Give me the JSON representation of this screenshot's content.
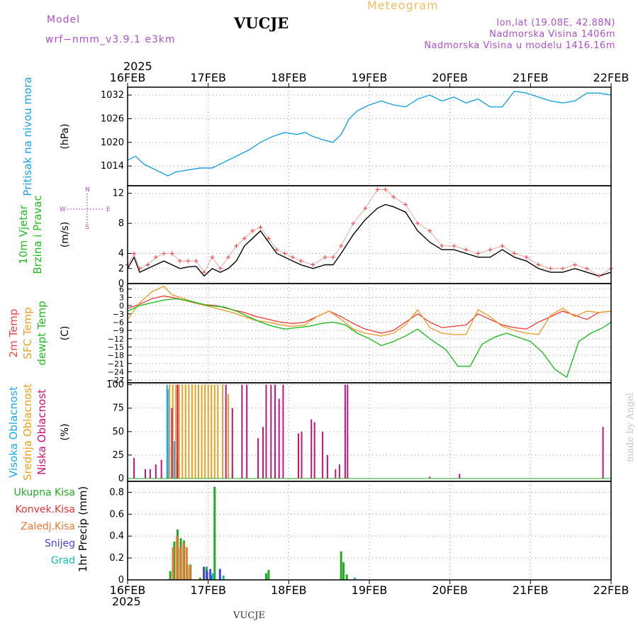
{
  "header": {
    "model_label": "Model",
    "model_value": "wrf−nmm_v3.9.1  e3km",
    "station": "VUCJE",
    "product": "Meteogram",
    "location": "lon,lat (19.08E, 42.88N)",
    "elevation": "Nadmorska Visina 1406m",
    "model_elevation": "Nadmorska Visina u modelu 1416.16m"
  },
  "footer": {
    "station": "VUCJE",
    "credit": "made by Angel"
  },
  "colors": {
    "pressure": "#1ea0e0",
    "temp2m": "#ee4444",
    "sfc": "#e8a030",
    "dew": "#22bb22",
    "high_cloud": "#1eaaee",
    "mid_cloud": "#e8a020",
    "low_cloud": "#cc1177",
    "total_precip": "#22aa22",
    "conv_precip": "#ee3333",
    "frozen_precip": "#ee7733",
    "snow": "#4444dd",
    "graupel": "#11bbbb",
    "wind_speed": "#000000",
    "gust_marker": "#ee4444"
  },
  "chart_data": {
    "type": "meteogram",
    "time_axis": {
      "year": "2025",
      "start_day": 16,
      "end_day": 22,
      "labels": [
        "16FEB",
        "17FEB",
        "18FEB",
        "19FEB",
        "20FEB",
        "21FEB",
        "22FEB"
      ]
    },
    "panels": [
      {
        "id": "pressure",
        "type": "line",
        "ylabel_lines": [
          "Pritisak na nivou mora"
        ],
        "unit": "(hPa)",
        "ylim": [
          1009,
          1034
        ],
        "ticks": [
          "1014",
          "1020",
          "1026",
          "1032"
        ],
        "tick_values": [
          1014,
          1020,
          1026,
          1032
        ],
        "series": [
          {
            "name": "MSL pressure",
            "t": [
              16.0,
              16.1,
              16.2,
              16.35,
              16.5,
              16.6,
              16.75,
              16.9,
              17.05,
              17.2,
              17.35,
              17.5,
              17.65,
              17.8,
              17.95,
              18.1,
              18.2,
              18.3,
              18.45,
              18.55,
              18.65,
              18.75,
              18.85,
              19.0,
              19.15,
              19.3,
              19.45,
              19.6,
              19.75,
              19.9,
              20.05,
              20.2,
              20.35,
              20.5,
              20.65,
              20.8,
              20.95,
              21.1,
              21.25,
              21.4,
              21.55,
              21.7,
              21.85,
              22.0
            ],
            "values": [
              1015.5,
              1016.5,
              1014.5,
              1013.0,
              1011.5,
              1012.5,
              1013.0,
              1013.5,
              1013.5,
              1015.0,
              1016.5,
              1018.0,
              1020.0,
              1021.5,
              1022.5,
              1022.0,
              1022.5,
              1021.5,
              1020.5,
              1020.0,
              1022.0,
              1026.0,
              1028.0,
              1029.5,
              1030.5,
              1029.5,
              1029.0,
              1031.0,
              1032.0,
              1030.5,
              1031.5,
              1030.0,
              1031.0,
              1029.0,
              1029.0,
              1033.0,
              1032.5,
              1031.5,
              1030.5,
              1030.0,
              1030.5,
              1032.5,
              1032.5,
              1032.0
            ]
          }
        ]
      },
      {
        "id": "wind",
        "type": "line",
        "ylabel_lines": [
          "10m Vjetar",
          "Brzina i Pravac"
        ],
        "unit": "(m/s)",
        "ylim": [
          0,
          13
        ],
        "ticks": [
          "0",
          "2",
          "4",
          "8",
          "12"
        ],
        "tick_values": [
          0,
          2,
          4,
          8,
          12
        ],
        "compass": [
          "N",
          "W",
          "E",
          "S"
        ],
        "series": [
          {
            "name": "10m wind speed",
            "t": [
              16.0,
              16.08,
              16.15,
              16.25,
              16.35,
              16.45,
              16.55,
              16.65,
              16.75,
              16.85,
              16.95,
              17.05,
              17.15,
              17.25,
              17.35,
              17.45,
              17.55,
              17.65,
              17.75,
              17.85,
              17.95,
              18.05,
              18.15,
              18.3,
              18.45,
              18.55,
              18.65,
              18.8,
              18.95,
              19.1,
              19.2,
              19.3,
              19.45,
              19.6,
              19.75,
              19.9,
              20.05,
              20.2,
              20.35,
              20.5,
              20.65,
              20.8,
              20.95,
              21.1,
              21.25,
              21.4,
              21.55,
              21.7,
              21.85,
              22.0
            ],
            "values": [
              2.0,
              3.5,
              1.5,
              2.0,
              2.5,
              3.0,
              2.5,
              2.0,
              2.2,
              2.3,
              1.0,
              2.0,
              1.5,
              2.0,
              3.0,
              5.0,
              6.0,
              7.0,
              5.5,
              4.0,
              3.5,
              3.0,
              2.5,
              2.0,
              2.5,
              2.5,
              4.0,
              6.5,
              8.5,
              10.0,
              10.5,
              10.2,
              9.5,
              7.0,
              5.5,
              4.5,
              4.5,
              4.0,
              3.5,
              3.5,
              4.5,
              3.5,
              3.0,
              2.0,
              1.5,
              1.5,
              2.0,
              1.5,
              1.0,
              1.5
            ]
          },
          {
            "name": "10m wind gust",
            "t": [
              16.0,
              16.08,
              16.15,
              16.25,
              16.35,
              16.45,
              16.55,
              16.65,
              16.75,
              16.85,
              16.95,
              17.05,
              17.15,
              17.25,
              17.35,
              17.45,
              17.55,
              17.65,
              17.75,
              17.85,
              17.95,
              18.05,
              18.15,
              18.3,
              18.45,
              18.55,
              18.65,
              18.8,
              18.95,
              19.1,
              19.2,
              19.3,
              19.45,
              19.6,
              19.75,
              19.9,
              20.05,
              20.2,
              20.35,
              20.5,
              20.65,
              20.8,
              20.95,
              21.1,
              21.25,
              21.4,
              21.55,
              21.7,
              21.85,
              22.0
            ],
            "values": [
              2.5,
              4.0,
              2.0,
              2.5,
              3.5,
              4.0,
              4.0,
              3.0,
              3.0,
              3.0,
              1.5,
              3.5,
              2.0,
              3.5,
              5.0,
              6.0,
              7.0,
              7.5,
              6.0,
              4.5,
              4.0,
              3.5,
              3.0,
              2.5,
              3.5,
              3.5,
              5.0,
              8.0,
              10.0,
              12.5,
              12.5,
              11.5,
              10.5,
              8.0,
              7.0,
              5.0,
              5.0,
              4.5,
              4.0,
              4.5,
              5.0,
              4.0,
              3.5,
              2.5,
              2.0,
              2.0,
              2.5,
              2.0,
              1.0,
              2.0
            ]
          }
        ]
      },
      {
        "id": "temperature",
        "type": "line",
        "ylabel_lines": [
          "2m Temp",
          "SFC Temp",
          "dewpt Temp"
        ],
        "unit": "(C)",
        "ylim": [
          -28,
          8
        ],
        "ticks": [
          "6",
          "3",
          "0",
          "−3",
          "−6",
          "−9",
          "−12",
          "−15",
          "−18",
          "−21",
          "−24",
          "−27"
        ],
        "tick_values": [
          6,
          3,
          0,
          -3,
          -6,
          -9,
          -12,
          -15,
          -18,
          -21,
          -24,
          -27
        ],
        "tick_fontsize": 11,
        "series": [
          {
            "name": "2m temperature",
            "t": [
              16.0,
              16.15,
              16.3,
              16.45,
              16.55,
              16.7,
              16.9,
              17.1,
              17.3,
              17.45,
              17.6,
              17.75,
              17.9,
              18.05,
              18.2,
              18.35,
              18.5,
              18.65,
              18.8,
              18.95,
              19.15,
              19.3,
              19.45,
              19.6,
              19.75,
              19.9,
              20.05,
              20.2,
              20.35,
              20.5,
              20.65,
              20.8,
              20.95,
              21.1,
              21.25,
              21.4,
              21.55,
              21.7,
              21.85,
              22.0
            ],
            "values": [
              -1.0,
              0.5,
              2.5,
              3.5,
              3.0,
              2.0,
              0.5,
              0.0,
              -1.5,
              -2.5,
              -4.0,
              -5.0,
              -6.0,
              -6.5,
              -6.0,
              -4.0,
              -2.0,
              -4.0,
              -6.5,
              -8.5,
              -10.0,
              -9.0,
              -6.0,
              -3.0,
              -6.0,
              -8.0,
              -7.5,
              -7.0,
              -3.0,
              -5.0,
              -7.0,
              -8.0,
              -8.5,
              -6.0,
              -4.0,
              -2.0,
              -3.5,
              -5.0,
              -2.5,
              -2.0
            ]
          },
          {
            "name": "Surface temperature",
            "t": [
              16.0,
              16.15,
              16.3,
              16.45,
              16.55,
              16.7,
              16.9,
              17.1,
              17.3,
              17.45,
              17.6,
              17.75,
              17.9,
              18.05,
              18.2,
              18.35,
              18.5,
              18.65,
              18.8,
              18.95,
              19.15,
              19.3,
              19.45,
              19.6,
              19.75,
              19.9,
              20.05,
              20.2,
              20.35,
              20.5,
              20.65,
              20.8,
              20.95,
              21.1,
              21.25,
              21.4,
              21.55,
              21.7,
              21.85,
              22.0
            ],
            "values": [
              -5.0,
              1.0,
              5.0,
              7.0,
              4.0,
              2.5,
              0.5,
              -1.0,
              -2.5,
              -4.0,
              -5.5,
              -6.0,
              -7.0,
              -7.5,
              -7.0,
              -4.0,
              -2.0,
              -5.0,
              -8.5,
              -10.0,
              -11.0,
              -10.0,
              -7.0,
              -1.5,
              -8.0,
              -10.0,
              -10.5,
              -10.5,
              -1.5,
              -4.0,
              -7.5,
              -9.0,
              -10.0,
              -10.5,
              -3.5,
              -1.0,
              -4.0,
              -2.0,
              -2.5,
              -2.0
            ]
          },
          {
            "name": "Dewpoint temperature",
            "t": [
              16.0,
              16.15,
              16.3,
              16.45,
              16.6,
              16.8,
              17.0,
              17.2,
              17.35,
              17.5,
              17.65,
              17.8,
              17.95,
              18.1,
              18.25,
              18.4,
              18.55,
              18.7,
              18.85,
              19.0,
              19.15,
              19.3,
              19.45,
              19.6,
              19.75,
              19.95,
              20.1,
              20.25,
              20.4,
              20.55,
              20.7,
              20.85,
              21.0,
              21.15,
              21.3,
              21.45,
              21.6,
              21.75,
              21.9,
              22.0
            ],
            "values": [
              -2.0,
              0.0,
              1.0,
              2.0,
              2.5,
              1.5,
              0.0,
              -0.5,
              -2.0,
              -4.0,
              -6.0,
              -7.5,
              -8.5,
              -8.0,
              -7.5,
              -6.5,
              -6.0,
              -7.0,
              -10.0,
              -12.0,
              -14.5,
              -13.0,
              -11.0,
              -8.5,
              -12.0,
              -16.0,
              -22.0,
              -22.0,
              -14.0,
              -11.5,
              -10.0,
              -11.5,
              -13.0,
              -17.0,
              -23.0,
              -26.0,
              -13.0,
              -10.0,
              -8.0,
              -6.0
            ]
          }
        ]
      },
      {
        "id": "clouds",
        "type": "bar",
        "ylabel_lines": [
          "Visoka Oblacnost",
          "Srednja Oblacnost",
          "Niska Oblacnost"
        ],
        "unit": "(%)",
        "ylim": [
          -3,
          102
        ],
        "ticks": [
          "0",
          "25",
          "50",
          "75",
          "100"
        ],
        "tick_values": [
          0,
          25,
          50,
          75,
          100
        ],
        "series": [
          {
            "name": "Visoka Oblacnost",
            "t": [
              16.49,
              16.5,
              16.52,
              16.55,
              16.58,
              16.61
            ],
            "values": [
              100,
              95,
              35,
              30,
              40,
              20
            ]
          },
          {
            "name": "Srednja Oblacnost",
            "t": [
              16.52,
              16.56,
              16.6,
              16.64,
              16.68,
              16.72,
              16.76,
              16.8,
              16.84,
              16.88,
              16.92,
              16.96,
              17.0,
              17.04,
              17.08,
              17.12,
              17.18,
              17.25,
              17.3
            ],
            "values": [
              100,
              100,
              100,
              100,
              100,
              100,
              100,
              100,
              100,
              100,
              100,
              100,
              100,
              100,
              100,
              100,
              100,
              90,
              10
            ]
          },
          {
            "name": "Niska Oblacnost",
            "t": [
              16.08,
              16.22,
              16.28,
              16.35,
              16.42,
              16.55,
              16.62,
              17.22,
              17.3,
              17.42,
              17.48,
              17.62,
              17.68,
              17.72,
              17.78,
              17.83,
              17.88,
              17.93,
              18.12,
              18.16,
              18.28,
              18.32,
              18.42,
              18.48,
              18.58,
              18.63,
              18.7,
              18.73,
              19.75,
              20.12,
              21.9
            ],
            "values": [
              22,
              10,
              10,
              15,
              20,
              75,
              100,
              100,
              75,
              100,
              100,
              43,
              55,
              100,
              100,
              100,
              85,
              100,
              48,
              50,
              63,
              60,
              50,
              25,
              10,
              15,
              100,
              100,
              2,
              5,
              55
            ]
          }
        ]
      },
      {
        "id": "precip",
        "type": "bar",
        "ylabel_lines": [
          "1hr Precip (mm)"
        ],
        "legend": [
          "Ukupna Kisa",
          "Konvek.Kisa",
          "Zaledj.Kisa",
          "Snijeg",
          "Grad"
        ],
        "unit": "",
        "ylim": [
          0,
          0.9
        ],
        "ticks": [
          "0",
          "0.2",
          "0.4",
          "0.6",
          "0.8"
        ],
        "tick_values": [
          0,
          0.2,
          0.4,
          0.6,
          0.8
        ],
        "series": [
          {
            "name": "Ukupna Kisa",
            "t": [
              16.53,
              16.58,
              16.62,
              16.66,
              16.7,
              16.74,
              16.78,
              16.9,
              16.98,
              17.04,
              17.08,
              17.72,
              17.75,
              18.65,
              18.68,
              18.72
            ],
            "values": [
              0.08,
              0.35,
              0.46,
              0.38,
              0.36,
              0.14,
              0.14,
              0.02,
              0.12,
              0.04,
              0.85,
              0.06,
              0.09,
              0.26,
              0.16,
              0.05
            ]
          },
          {
            "name": "Zaledj.Kisa",
            "t": [
              16.55,
              16.6,
              16.64,
              16.68,
              16.72,
              16.76
            ],
            "values": [
              0.3,
              0.4,
              0.3,
              0.34,
              0.3,
              0.13
            ]
          },
          {
            "name": "Snijeg",
            "t": [
              16.92,
              16.96,
              17.0,
              17.12
            ],
            "values": [
              0.12,
              0.08,
              0.1,
              0.1
            ]
          },
          {
            "name": "Grad",
            "t": [
              17.02,
              17.15,
              18.78
            ],
            "values": [
              0.06,
              0.04,
              0.02
            ]
          }
        ]
      }
    ]
  }
}
